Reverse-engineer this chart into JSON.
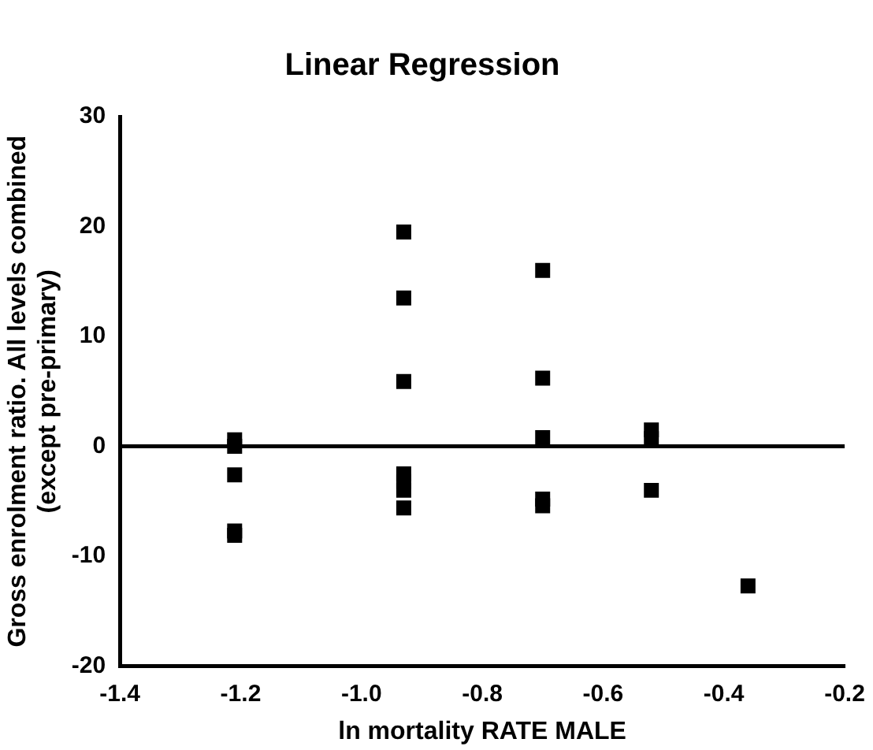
{
  "chart_data": {
    "type": "scatter",
    "title": "Linear Regression",
    "xlabel": "ln mortality RATE MALE",
    "ylabel": "Gross enrolment ratio. All levels combined\n(except pre-primary)",
    "series": [
      {
        "color": "#000000",
        "x": [
          -1.21,
          -1.21,
          -1.21,
          -1.21,
          -1.21,
          -0.93,
          -0.93,
          -0.93,
          -0.93,
          -0.93,
          -0.93,
          -0.93,
          -0.7,
          -0.7,
          -0.7,
          -0.7,
          -0.7,
          -0.52,
          -0.52,
          -0.52,
          -0.36
        ],
        "values": [
          0.6,
          0,
          -2.6,
          -7.7,
          -8.1,
          19.5,
          13.5,
          5.9,
          -2.5,
          -3.2,
          -4,
          -5.6,
          16,
          6.2,
          0.8,
          -4.8,
          -5.4,
          1.5,
          0.7,
          -4,
          -12.7
        ]
      }
    ],
    "marker": "square",
    "xlim": [
      -1.4,
      -0.2
    ],
    "xticks": [
      -1.4,
      -1.2,
      {
        "value": -1.0,
        "label": "-1.0"
      },
      -0.8,
      -0.6,
      -0.4,
      -0.2
    ],
    "ylim": [
      -20,
      30
    ],
    "yticks": [
      -20,
      -10,
      0,
      10,
      20,
      30
    ],
    "grid": false,
    "legend": false,
    "ref_lines": [
      {
        "axis": "y",
        "value": 0,
        "color": "#000000"
      }
    ]
  }
}
